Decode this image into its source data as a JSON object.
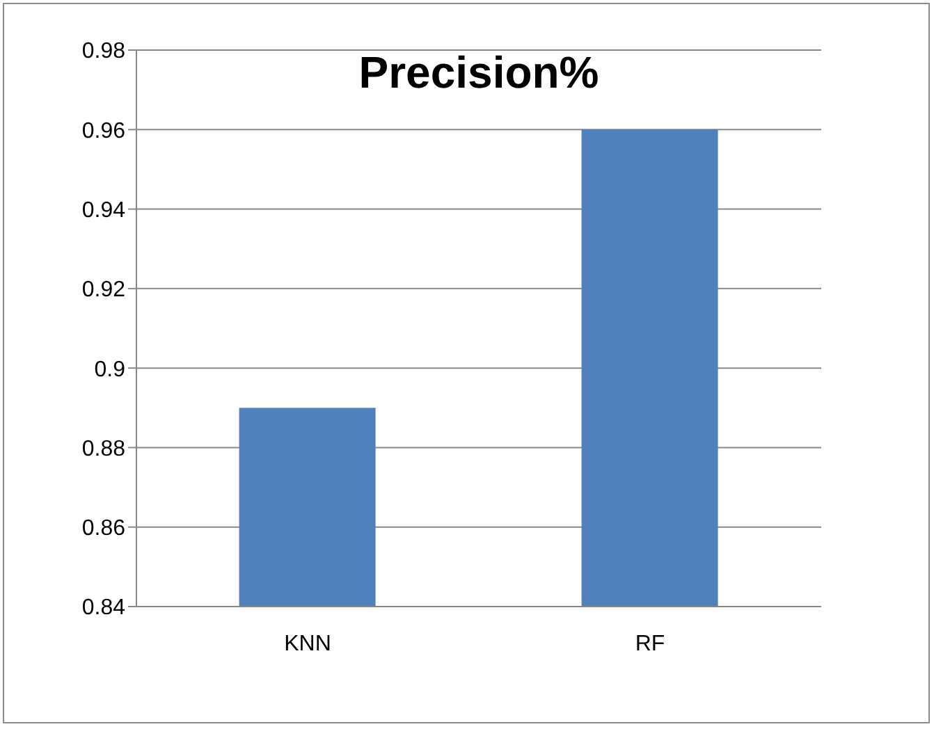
{
  "chart_data": {
    "type": "bar",
    "title": "Precision%",
    "categories": [
      "KNN",
      "RF"
    ],
    "values": [
      0.89,
      0.96
    ],
    "color": "#4f81bd",
    "ylim": [
      0.84,
      0.98
    ],
    "yticks": [
      0.84,
      0.86,
      0.88,
      0.9,
      0.92,
      0.94,
      0.96,
      0.98
    ],
    "grid": "y",
    "legend": false
  }
}
